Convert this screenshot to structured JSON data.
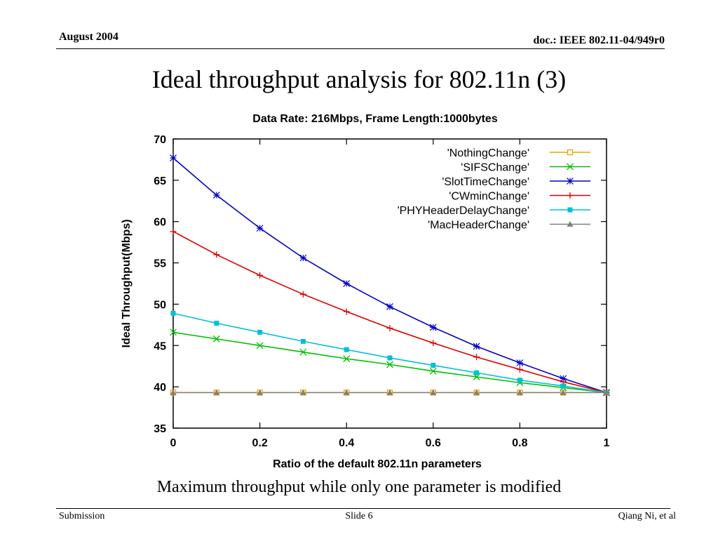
{
  "slide": {
    "header_left": "August 2004",
    "header_right": "doc.: IEEE 802.11-04/949r0",
    "title": "Ideal throughput analysis for 802.11n (3)",
    "caption": "Maximum throughput while only one parameter is modified",
    "footer_left": "Submission",
    "footer_center": "Slide 6",
    "footer_right": "Qiang Ni, et al"
  },
  "chart_data": {
    "type": "line",
    "title": "Data Rate: 216Mbps, Frame Length:1000bytes",
    "xlabel": "Ratio of the default 802.11n parameters",
    "ylabel": "Ideal Throughput(Mbps)",
    "xlim": [
      0,
      1
    ],
    "ylim": [
      35,
      70
    ],
    "xticks": [
      "0",
      "0.2",
      "0.4",
      "0.6",
      "0.8",
      "1"
    ],
    "yticks": [
      "35",
      "40",
      "45",
      "50",
      "55",
      "60",
      "65",
      "70"
    ],
    "grid": false,
    "legend_position": "top-right",
    "x": [
      0,
      0.1,
      0.2,
      0.3,
      0.4,
      0.5,
      0.6,
      0.7,
      0.8,
      0.9,
      1.0
    ],
    "series": [
      {
        "name": "'NothingChange'",
        "color": "#f0a000",
        "marker": "open-square",
        "values": [
          39.3,
          39.3,
          39.3,
          39.3,
          39.3,
          39.3,
          39.3,
          39.3,
          39.3,
          39.3,
          39.3
        ]
      },
      {
        "name": "'SIFSChange'",
        "color": "#00c000",
        "marker": "x",
        "values": [
          46.6,
          45.8,
          45.0,
          44.2,
          43.4,
          42.7,
          41.9,
          41.2,
          40.5,
          39.9,
          39.3
        ]
      },
      {
        "name": "'SlotTimeChange'",
        "color": "#0000c8",
        "marker": "star",
        "values": [
          67.7,
          63.2,
          59.2,
          55.6,
          52.5,
          49.7,
          47.2,
          44.9,
          42.9,
          41.0,
          39.3
        ]
      },
      {
        "name": "'CWminChange'",
        "color": "#e00000",
        "marker": "plus",
        "values": [
          58.8,
          56.0,
          53.5,
          51.2,
          49.1,
          47.1,
          45.3,
          43.6,
          42.1,
          40.6,
          39.3
        ]
      },
      {
        "name": "'PHYHeaderDelayChange'",
        "color": "#00c0d8",
        "marker": "filled-square",
        "values": [
          48.9,
          47.7,
          46.6,
          45.5,
          44.5,
          43.5,
          42.6,
          41.7,
          40.8,
          40.1,
          39.3
        ]
      },
      {
        "name": "'MacHeaderChange'",
        "color": "#808080",
        "marker": "triangle",
        "values": [
          39.3,
          39.3,
          39.3,
          39.3,
          39.3,
          39.3,
          39.3,
          39.3,
          39.3,
          39.3,
          39.3
        ]
      }
    ]
  }
}
